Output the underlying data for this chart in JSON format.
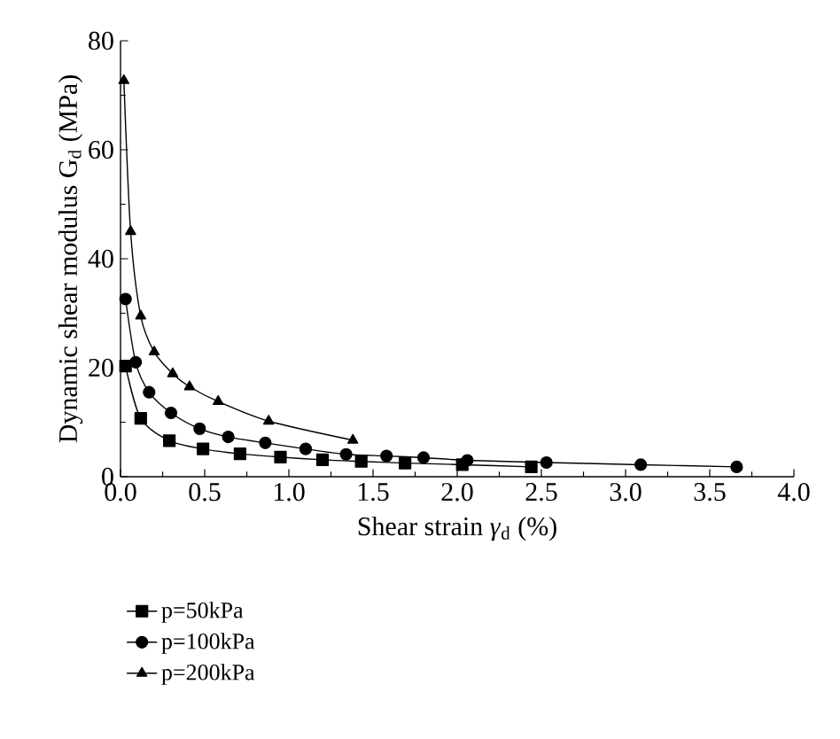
{
  "chart_data": {
    "type": "line",
    "xlabel": "Shear strain *γ*$_{d}$ (%)",
    "ylabel": "Dynamic shear modulus G$_{d}$ (MPa)",
    "xlim": [
      0,
      4
    ],
    "ylim": [
      0,
      80
    ],
    "xticks": [
      {
        "value": 0,
        "label": "0.0"
      },
      {
        "value": 0.5,
        "label": "0.5"
      },
      {
        "value": 1,
        "label": "1.0"
      },
      {
        "value": 1.5,
        "label": "1.5"
      },
      {
        "value": 2,
        "label": "2.0"
      },
      {
        "value": 2.5,
        "label": "2.5"
      },
      {
        "value": 3,
        "label": "3.0"
      },
      {
        "value": 3.5,
        "label": "3.5"
      },
      {
        "value": 4,
        "label": "4.0"
      }
    ],
    "yticks": [
      0,
      20,
      40,
      60,
      80
    ],
    "grid": false,
    "legend": "bottom",
    "series": [
      {
        "name": "p=50kPa",
        "color": "#000000",
        "marker": "square",
        "x": [
          0.03,
          0.12,
          0.29,
          0.49,
          0.71,
          0.95,
          1.2,
          1.43,
          1.69,
          2.03,
          2.44
        ],
        "values": [
          20.3,
          10.7,
          6.6,
          5.1,
          4.2,
          3.6,
          3.1,
          2.8,
          2.5,
          2.2,
          1.8
        ]
      },
      {
        "name": "p=100kPa",
        "color": "#000000",
        "marker": "circle",
        "x": [
          0.03,
          0.09,
          0.17,
          0.3,
          0.47,
          0.64,
          0.86,
          1.1,
          1.34,
          1.58,
          1.8,
          2.06,
          2.53,
          3.09,
          3.66
        ],
        "values": [
          32.6,
          21.0,
          15.5,
          11.7,
          8.8,
          7.3,
          6.2,
          5.1,
          4.1,
          3.8,
          3.5,
          3.0,
          2.6,
          2.2,
          1.8
        ]
      },
      {
        "name": "p=200kPa",
        "color": "#000000",
        "marker": "triangle",
        "x": [
          0.02,
          0.06,
          0.12,
          0.2,
          0.31,
          0.41,
          0.58,
          0.88,
          1.38
        ],
        "values": [
          72.7,
          45.0,
          29.5,
          22.9,
          18.9,
          16.5,
          13.8,
          10.2,
          6.7
        ]
      }
    ]
  }
}
